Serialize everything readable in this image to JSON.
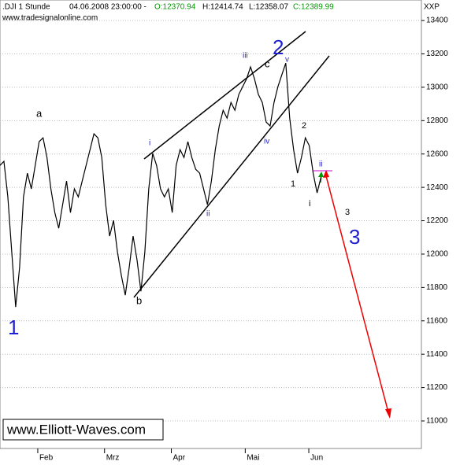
{
  "chart_data": {
    "type": "line",
    "header": {
      "instrument": ".DJI 1 Stunde",
      "timestamp": "04.06.2008 23:00:00 -",
      "open": "O:12370.94",
      "high": "H:12414.74",
      "low": "L:12358.07",
      "close": "C:12389.99"
    },
    "source": "www.tradesignalonline.com",
    "axis_label": "XXP",
    "watermark": "www.Elliott-Waves.com",
    "annotations": [
      "1",
      "a",
      "b",
      "i",
      "ii",
      "iii",
      "iv",
      "2",
      "c",
      "v",
      "2",
      "1",
      "i",
      "ii",
      "3",
      "3"
    ],
    "x": [
      0,
      1.7,
      3.4,
      5.1,
      6.8,
      8.5,
      10.2,
      11.9,
      13.6,
      15.3,
      17,
      18.7,
      20.4,
      22.1,
      23.8,
      25.5,
      27.2,
      28.9,
      30.6,
      32.3,
      34,
      35.7,
      37.4,
      39.1,
      40.8,
      42.5,
      44.2,
      45.9,
      47.6,
      49.3,
      51,
      52.7,
      54.4,
      56.1,
      57.8,
      59.5,
      61.2,
      62.9,
      64.6,
      66.3,
      68,
      69.7,
      71.4,
      73.1,
      74.8,
      76.5,
      78.2,
      79.9,
      81.6,
      83.3,
      85,
      86.7,
      88.4,
      90.1,
      91.8,
      93.5,
      95.2,
      96.9,
      98.6,
      100.3,
      102,
      103.7,
      105.4,
      107.1,
      108.8,
      110.5,
      112.2,
      113.9,
      115.6,
      117.3,
      119,
      120.7,
      122.4,
      124.1,
      125.8,
      127.5,
      129.2,
      130.9,
      132.6,
      134.3,
      136,
      137.7,
      139.4
    ],
    "series": [
      {
        "name": ".DJI",
        "color": "#000000",
        "values": [
          12532,
          12556,
          12343,
          12013,
          11683,
          11919,
          12343,
          12485,
          12391,
          12532,
          12674,
          12697,
          12579,
          12391,
          12249,
          12155,
          12296,
          12438,
          12249,
          12391,
          12343,
          12438,
          12532,
          12626,
          12721,
          12697,
          12579,
          12296,
          12108,
          12202,
          12013,
          11872,
          11754,
          11919,
          12108,
          11966,
          11777,
          12013,
          12391,
          12603,
          12532,
          12391,
          12343,
          12391,
          12249,
          12532,
          12626,
          12579,
          12674,
          12579,
          12508,
          12485,
          12391,
          12296,
          12438,
          12626,
          12768,
          12862,
          12815,
          12909,
          12862,
          12957,
          13004,
          13051,
          13122,
          13051,
          12957,
          12909,
          12791,
          12768,
          12909,
          13004,
          13075,
          13145,
          12815,
          12626,
          12485,
          12579,
          12697,
          12650,
          12485,
          12367,
          12461
        ]
      }
    ],
    "xlim": [
      0,
      183
    ],
    "xticks": [
      {
        "value": 16.4,
        "label": "Feb"
      },
      {
        "value": 45.4,
        "label": "Mrz"
      },
      {
        "value": 74.4,
        "label": "Apr"
      },
      {
        "value": 106.5,
        "label": "Mai"
      },
      {
        "value": 134.1,
        "label": "Jun"
      }
    ],
    "ylim": [
      10835,
      13523
    ],
    "yticks": [
      11000,
      11200,
      11400,
      11600,
      11800,
      12000,
      12200,
      12400,
      12600,
      12800,
      13000,
      13200,
      13400
    ],
    "grid": true
  }
}
